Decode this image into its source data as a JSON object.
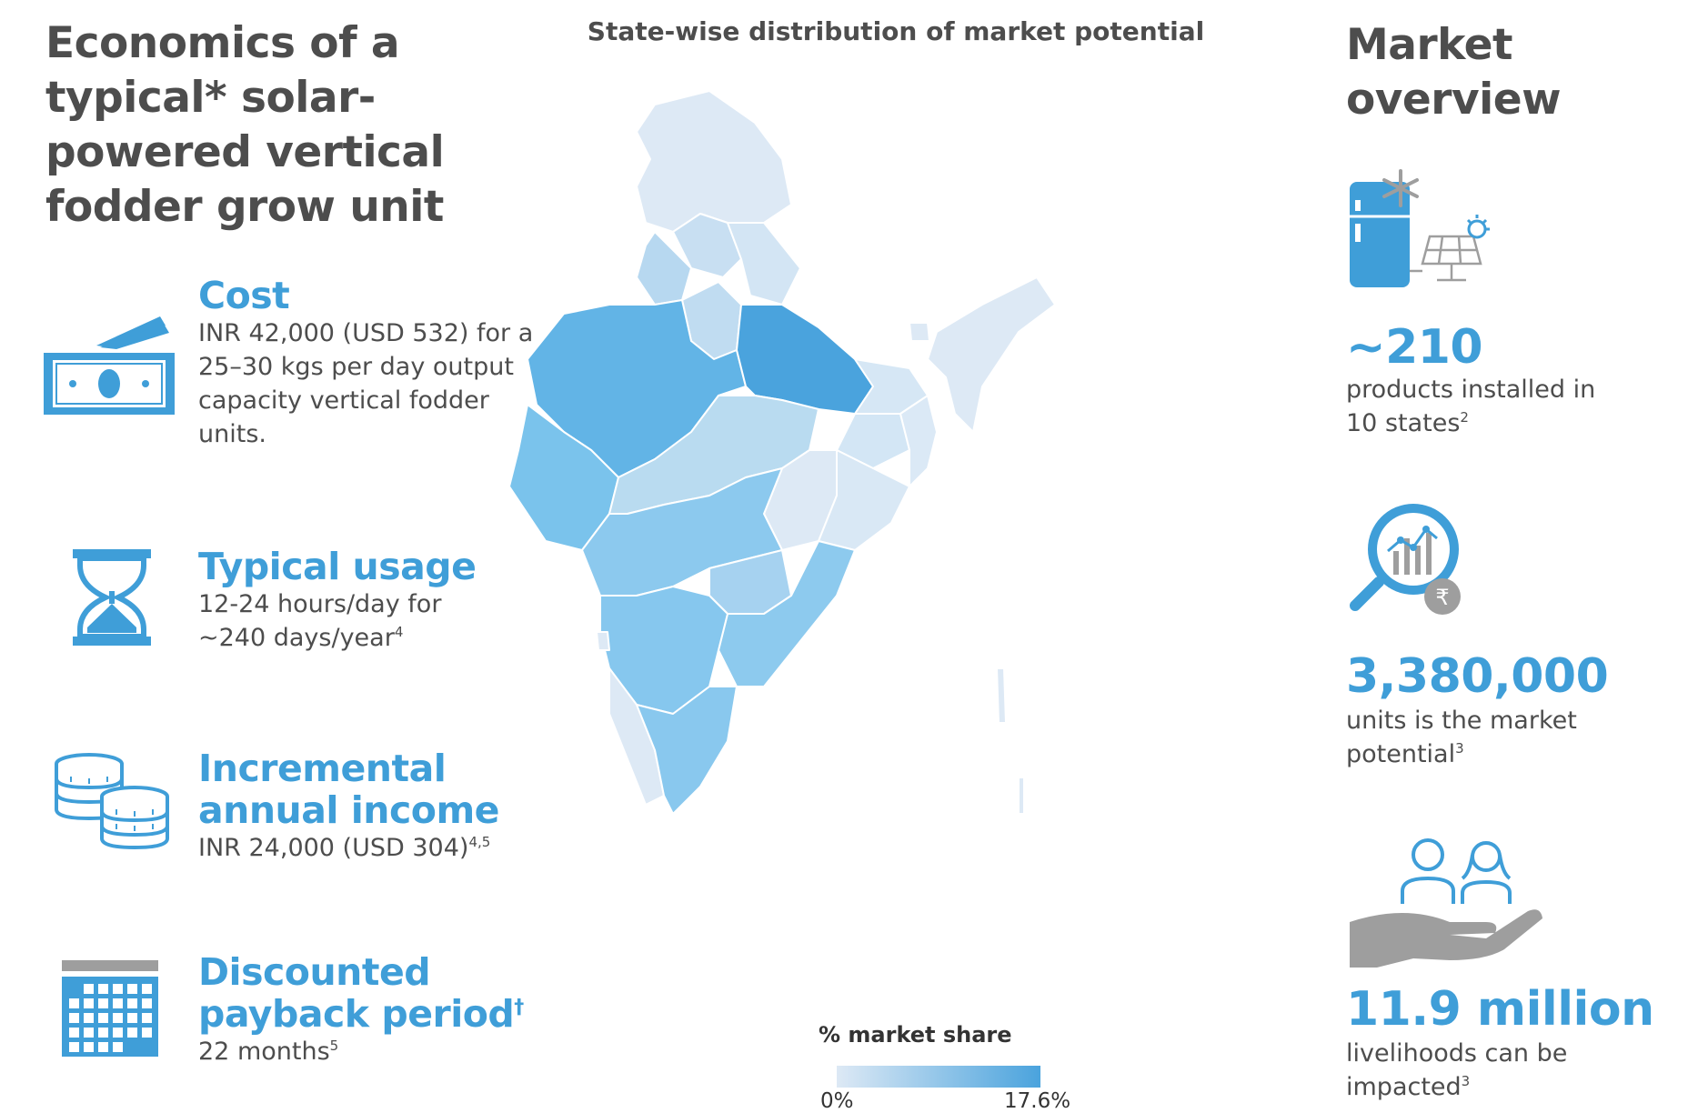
{
  "left": {
    "title": "Economics of a typical* solar-powered vertical fodder grow unit",
    "items": [
      {
        "icon": "money-icon",
        "title": "Cost",
        "body": "INR 42,000 (USD 532) for a 25–30 kgs per day output capacity vertical fodder units."
      },
      {
        "icon": "hourglass-icon",
        "title": "Typical usage",
        "body": "12-24 hours/day for ~240 days/year",
        "sup": "4"
      },
      {
        "icon": "coins-icon",
        "title": "Incremental annual income",
        "body": "INR 24,000 (USD 304)",
        "sup": "4,5"
      },
      {
        "icon": "calendar-icon",
        "title": "Discounted payback period",
        "title_sup": "†",
        "body": "22 months",
        "sup": "5"
      }
    ]
  },
  "map": {
    "title": "State-wise distribution of market potential",
    "legend_title": "% market share",
    "legend_min": "0%",
    "legend_max": "17.6%",
    "color_low": "#dde9f5",
    "color_high": "#4aa3dd"
  },
  "right": {
    "title": "Market overview",
    "stats": [
      {
        "icon": "solar-refrigerator-icon",
        "number": "~210",
        "text": "products installed in 10 states",
        "sup": "2"
      },
      {
        "icon": "market-analysis-icon",
        "number": "3,380,000",
        "text": "units is the market potential",
        "sup": "3"
      },
      {
        "icon": "people-hand-icon",
        "number": "11.9 million",
        "text": "livelihoods can be impacted",
        "sup": "3"
      }
    ]
  },
  "colors": {
    "accent": "#3f9ed8",
    "text": "#4d4d4d",
    "icon_gray": "#9e9e9e"
  }
}
